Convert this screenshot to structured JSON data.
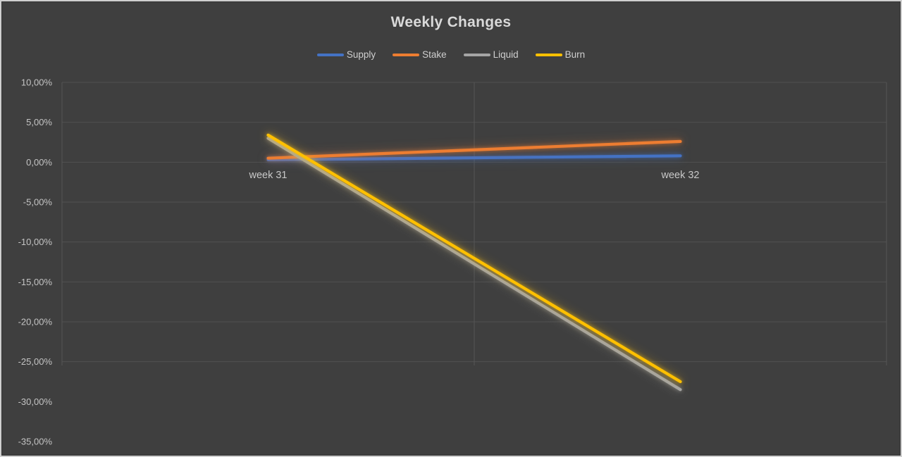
{
  "window": {
    "background": "#3f3f3f",
    "frame_border_color": "#cfcfcf"
  },
  "chart_data": {
    "type": "line",
    "title": "Weekly Changes",
    "categories": [
      "week 31",
      "week 32"
    ],
    "series": [
      {
        "name": "Supply",
        "color": "#4472c4",
        "values": [
          0.3,
          0.8
        ]
      },
      {
        "name": "Stake",
        "color": "#ed7d31",
        "values": [
          0.5,
          2.6
        ]
      },
      {
        "name": "Liquid",
        "color": "#a5a5a5",
        "values": [
          3.0,
          -28.5
        ]
      },
      {
        "name": "Burn",
        "color": "#ffc000",
        "values": [
          3.4,
          -27.5
        ]
      }
    ],
    "y_axis": {
      "ylim": [
        -35,
        10
      ],
      "tick_step": 5,
      "ticks": [
        {
          "value": 10,
          "label": "10,00%"
        },
        {
          "value": 5,
          "label": "5,00%"
        },
        {
          "value": 0,
          "label": "0,00%"
        },
        {
          "value": -5,
          "label": "-5,00%"
        },
        {
          "value": -10,
          "label": "-10,00%"
        },
        {
          "value": -15,
          "label": "-15,00%"
        },
        {
          "value": -20,
          "label": "-20,00%"
        },
        {
          "value": -25,
          "label": "-25,00%"
        },
        {
          "value": -30,
          "label": "-30,00%"
        },
        {
          "value": -35,
          "label": "-35,00%"
        }
      ],
      "gridlines_visible_down_to": -25
    },
    "legend_position": "top",
    "grid": true,
    "text_color": "#c8c8c8",
    "gridline_color": "#515151",
    "title_color": "#d9d9d9"
  }
}
